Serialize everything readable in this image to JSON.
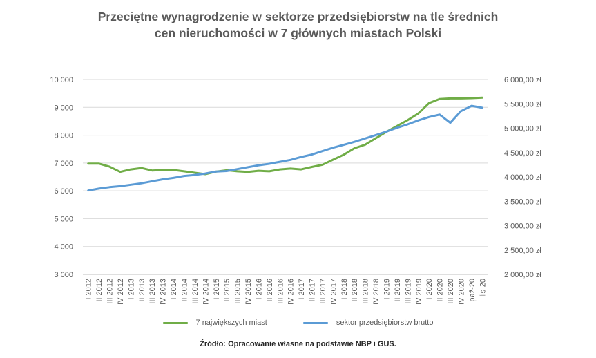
{
  "title_line1": "Przeciętne wynagrodzenie w sektorze przedsiębiorstw na tle średnich",
  "title_line2": "cen nieruchomości w 7 głównych miastach Polski",
  "source": "Źródło: Opracowanie własne na podstawie NBP i GUS.",
  "colors": {
    "green": "#70ad47",
    "blue": "#5b9bd5",
    "grid": "#d9d9d9"
  },
  "chart_data": {
    "type": "line",
    "categories": [
      "I 2012",
      "II 2012",
      "III 2012",
      "IV 2012",
      "I 2013",
      "II 2013",
      "III 2013",
      "IV 2013",
      "I 2014",
      "II 2014",
      "III 2014",
      "IV 2014",
      "I 2015",
      "II 2015",
      "III 2015",
      "IV 2015",
      "I 2016",
      "II 2016",
      "III 2016",
      "IV 2016",
      "I 2017",
      "II 2017",
      "III 2017",
      "IV 2017",
      "I 2018",
      "II 2018",
      "III 2018",
      "IV 2018",
      "I 2019",
      "II 2019",
      "III 2019",
      "IV 2019",
      "I 2020",
      "II 2020",
      "III 2020",
      "IV 2020",
      "paź-20",
      "lis-20"
    ],
    "y_left": {
      "ylim": [
        3000,
        10000
      ],
      "ticks": [
        "3 000",
        "4 000",
        "5 000",
        "6 000",
        "7 000",
        "8 000",
        "9 000",
        "10 000"
      ]
    },
    "y_right": {
      "ylim": [
        2000,
        6000
      ],
      "ticks": [
        "2 000,00 zł",
        "2 500,00 zł",
        "3 000,00 zł",
        "3 500,00 zł",
        "4 000,00 zł",
        "4 500,00 zł",
        "5 000,00 zł",
        "5 500,00 zł",
        "6 000,00 zł"
      ]
    },
    "series": [
      {
        "name": "7 największych miast",
        "axis": "left",
        "color": "#70ad47",
        "values": [
          6980,
          6980,
          6870,
          6680,
          6770,
          6820,
          6730,
          6750,
          6750,
          6700,
          6650,
          6600,
          6690,
          6740,
          6700,
          6680,
          6720,
          6700,
          6770,
          6800,
          6770,
          6860,
          6940,
          7120,
          7300,
          7530,
          7660,
          7890,
          8120,
          8330,
          8540,
          8780,
          9150,
          9300,
          9320,
          9320,
          9330,
          9350
        ]
      },
      {
        "name": "sektor przedsiębiorstw brutto",
        "axis": "right",
        "color": "#5b9bd5",
        "values": [
          3720,
          3760,
          3790,
          3810,
          3840,
          3870,
          3910,
          3950,
          3980,
          4020,
          4040,
          4070,
          4110,
          4120,
          4160,
          4200,
          4240,
          4270,
          4310,
          4350,
          4410,
          4460,
          4530,
          4600,
          4660,
          4720,
          4790,
          4860,
          4930,
          5010,
          5080,
          5160,
          5230,
          5280,
          5110,
          5350,
          5460,
          5420
        ]
      }
    ],
    "grid": true,
    "legend_position": "bottom"
  }
}
